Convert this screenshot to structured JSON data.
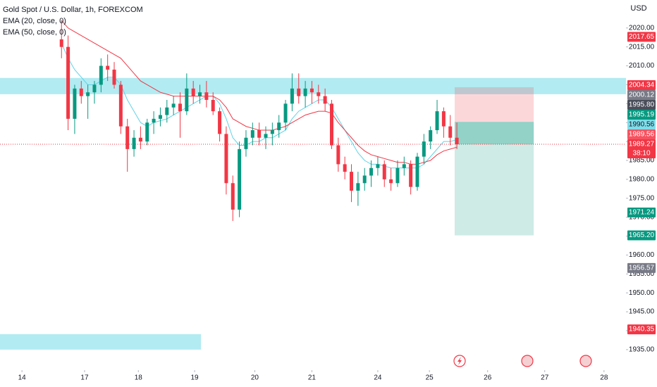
{
  "chart_data": {
    "type": "candlestick",
    "title": "Gold Spot / U.S. Dollar, 1h, FOREXCOM",
    "currency": "USD",
    "countdown": "38:10",
    "up_color": "#089981",
    "down_color": "#f23645",
    "xlim": [
      0,
      285
    ],
    "ylim": [
      1930.7,
      2027.4
    ],
    "xticks": [
      {
        "value": 10,
        "label": "14"
      },
      {
        "value": 38.5,
        "label": "17"
      },
      {
        "value": 63,
        "label": "18"
      },
      {
        "value": 88.6,
        "label": "19"
      },
      {
        "value": 116,
        "label": "20"
      },
      {
        "value": 142,
        "label": "21"
      },
      {
        "value": 172,
        "label": "24"
      },
      {
        "value": 195.5,
        "label": "25"
      },
      {
        "value": 222,
        "label": "26"
      },
      {
        "value": 248,
        "label": "27"
      },
      {
        "value": 275,
        "label": "28"
      }
    ],
    "yticks": [
      {
        "value": 1935,
        "label": "1935.00"
      },
      {
        "value": 1940,
        "label": "1940.00"
      },
      {
        "value": 1945,
        "label": "1945.00"
      },
      {
        "value": 1950,
        "label": "1950.00"
      },
      {
        "value": 1955,
        "label": "1955.00"
      },
      {
        "value": 1960,
        "label": "1960.00"
      },
      {
        "value": 1965,
        "label": "1965.00"
      },
      {
        "value": 1970,
        "label": "1970.00"
      },
      {
        "value": 1975,
        "label": "1975.00"
      },
      {
        "value": 1980,
        "label": "1980.00"
      },
      {
        "value": 1985,
        "label": "1985.00"
      },
      {
        "value": 1990,
        "label": "1990.00"
      },
      {
        "value": 1995,
        "label": "1995.00"
      },
      {
        "value": 2000,
        "label": "2000.00"
      },
      {
        "value": 2005,
        "label": "2005.00"
      },
      {
        "value": 2010,
        "label": "2010.00"
      },
      {
        "value": 2015,
        "label": "2015.00"
      },
      {
        "value": 2020,
        "label": "2020.00"
      }
    ],
    "x": [
      28,
      31,
      34,
      37,
      40,
      43,
      46,
      49,
      52,
      55,
      58,
      61,
      64,
      67,
      70,
      73,
      76,
      79,
      82,
      85,
      88,
      91,
      94,
      97,
      100,
      103,
      106,
      109,
      112,
      115,
      118,
      121,
      124,
      127,
      130,
      133,
      136,
      139,
      142,
      145,
      148,
      151,
      154,
      157,
      160,
      163,
      166,
      169,
      172,
      175,
      178,
      181,
      184,
      187,
      190,
      193,
      196,
      199,
      202,
      205,
      208
    ],
    "open": [
      2017,
      2015,
      1996,
      2004,
      2002,
      2003,
      2005,
      2010,
      2009,
      2005,
      1994,
      1988,
      1991,
      1990,
      1995,
      1996,
      1997,
      1999,
      2000,
      1998,
      2004,
      2002,
      2003,
      2001,
      1998,
      1992,
      1979,
      1972,
      1988,
      1991,
      1993,
      1991,
      1992,
      1993,
      1995,
      2000,
      2004,
      2002,
      2004,
      2003,
      2002,
      2000,
      1989,
      1984,
      1982,
      1977,
      1979,
      1981,
      1983,
      1984,
      1980,
      1979,
      1983,
      1984,
      1978,
      1986,
      1990,
      1993,
      1998,
      1994,
      1991
    ],
    "high": [
      2022,
      2018,
      2005,
      2006,
      2005,
      2006,
      2012,
      2013,
      2011,
      2006,
      1996,
      1993,
      1994,
      1996,
      1998,
      1999,
      2001,
      2002,
      2003,
      2008,
      2006,
      2005,
      2006,
      2003,
      1999,
      1994,
      1981,
      1990,
      1993,
      1995,
      1995,
      1994,
      1995,
      1997,
      2001,
      2008,
      2008,
      2006,
      2006,
      2005,
      2004,
      2001,
      1991,
      1986,
      1984,
      1982,
      1983,
      1985,
      1986,
      1985,
      1983,
      1985,
      1986,
      1985,
      1987,
      1992,
      1994,
      2001,
      1999,
      1997,
      1995
    ],
    "low": [
      2012,
      1993,
      1992,
      2000,
      1996,
      2000,
      2003,
      2006,
      2004,
      1992,
      1982,
      1986,
      1988,
      1989,
      1992,
      1994,
      1995,
      1997,
      1991,
      1997,
      2000,
      2000,
      1999,
      1997,
      1990,
      1976,
      1969,
      1970,
      1986,
      1989,
      1989,
      1988,
      1989,
      1991,
      1993,
      1998,
      2000,
      1999,
      2000,
      2000,
      1998,
      1988,
      1982,
      1980,
      1974,
      1973,
      1977,
      1978,
      1981,
      1978,
      1977,
      1978,
      1981,
      1976,
      1977,
      1984,
      1988,
      1992,
      1991,
      1989,
      1988
    ],
    "close": [
      2015,
      1996,
      2004,
      2002,
      2003,
      2005,
      2010,
      2009,
      2005,
      1994,
      1988,
      1991,
      1990,
      1995,
      1996,
      1997,
      1999,
      2000,
      1998,
      2004,
      2002,
      2003,
      2001,
      1998,
      1992,
      1979,
      1972,
      1988,
      1991,
      1993,
      1991,
      1992,
      1993,
      1995,
      2000,
      2004,
      2002,
      2004,
      2003,
      2002,
      2000,
      1989,
      1984,
      1982,
      1977,
      1979,
      1981,
      1983,
      1984,
      1980,
      1979,
      1983,
      1984,
      1978,
      1986,
      1990,
      1993,
      1998,
      1994,
      1991,
      1989.27
    ],
    "series": [
      {
        "name": "EMA (20, close, 0)",
        "color": "#5fd3e8",
        "values": [
          2016,
          2012,
          2009,
          2007,
          2005,
          2005,
          2006,
          2007,
          2007,
          2005,
          2001,
          1998,
          1995,
          1994,
          1995,
          1995.5,
          1996,
          1997,
          1998,
          1999,
          2000,
          2001,
          2002,
          2002,
          2000,
          1996,
          1991,
          1989,
          1989,
          1990,
          1990,
          1991,
          1991,
          1992,
          1993,
          1996,
          1998,
          1999,
          2000,
          2001,
          2001,
          1999,
          1996,
          1993,
          1990,
          1987,
          1985,
          1984,
          1984,
          1983.5,
          1983,
          1983,
          1983,
          1983,
          1983,
          1984,
          1986,
          1988,
          1990,
          1990,
          1990.5
        ]
      },
      {
        "name": "EMA (50, close, 0)",
        "color": "#f23645",
        "values": [
          2022,
          2020,
          2019,
          2018,
          2017,
          2016,
          2015,
          2014,
          2013,
          2012,
          2010,
          2008,
          2006,
          2005,
          2004,
          2003,
          2002.5,
          2002,
          2002,
          2002,
          2002,
          2002,
          2002,
          2002,
          2001,
          1999,
          1996,
          1995,
          1994,
          1993.5,
          1993,
          1993,
          1993,
          1993.5,
          1994,
          1995,
          1996,
          1997,
          1997.5,
          1998,
          1998,
          1997.5,
          1995,
          1993,
          1991,
          1989,
          1987.5,
          1986.5,
          1986,
          1985.5,
          1985,
          1984.5,
          1984.5,
          1984,
          1984,
          1984.5,
          1985,
          1986.5,
          1987.5,
          1988,
          1988.5
        ]
      }
    ],
    "zones": [
      {
        "x": [
          0,
          285
        ],
        "y": [
          2002.5,
          2006.8
        ],
        "color": "#b2ebf2"
      },
      {
        "x": [
          0,
          91.5
        ],
        "y": [
          1935,
          1939.1
        ],
        "color": "#b2ebf2"
      }
    ],
    "position": {
      "x": [
        207,
        243
      ],
      "entry": 1995.19,
      "stop": 2004.34,
      "target": 1965.2,
      "current": 1989.27
    },
    "price_labels": [
      {
        "value": 2017.65,
        "label": "2017.65",
        "color": "#f23645"
      },
      {
        "value": 2004.34,
        "label": "2004.34",
        "color": "#f23645"
      },
      {
        "value": 2000.12,
        "label": "2000.12",
        "color": "#787b86"
      },
      {
        "value": 1995.8,
        "label": "1995.80",
        "color": "#4a4e5a"
      },
      {
        "value": 1995.19,
        "label": "1995.19",
        "color": "#089981"
      },
      {
        "value": 1990.56,
        "label": "1990.56",
        "color": "#7fdde9"
      },
      {
        "value": 1989.56,
        "label": "1989.56",
        "color": "#f7525f"
      },
      {
        "value": 1989.27,
        "label": "1989.27",
        "color": "#f23645"
      },
      {
        "value": 1971.24,
        "label": "1971.24",
        "color": "#089981"
      },
      {
        "value": 1965.2,
        "label": "1965.20",
        "color": "#089981"
      },
      {
        "value": 1956.57,
        "label": "1956.57",
        "color": "#787b86"
      },
      {
        "value": 1940.35,
        "label": "1940.35",
        "color": "#f23645"
      }
    ]
  }
}
